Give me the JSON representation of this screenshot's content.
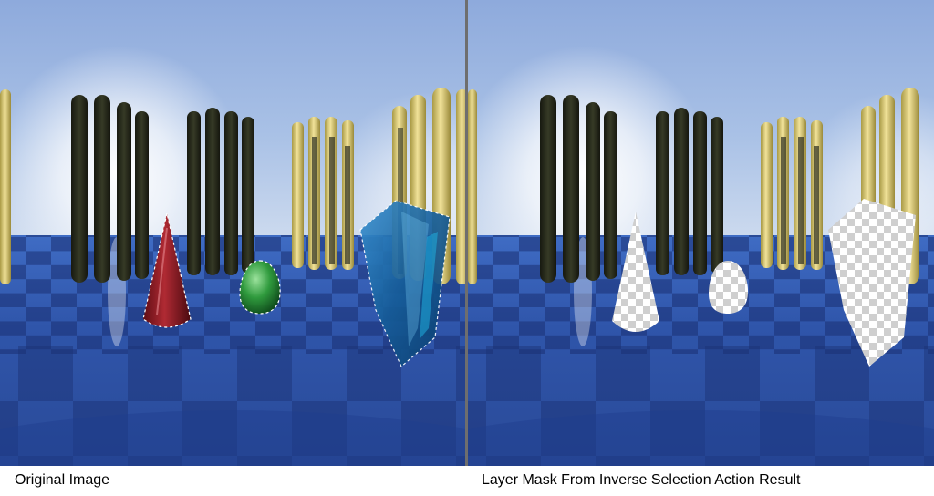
{
  "captions": {
    "left": "Original Image",
    "right": "Layer Mask From Inverse Selection Action Result"
  },
  "colors": {
    "sky_top": "#97b2d8",
    "sky_glow": "#ffffff",
    "floor": "#2b4b9e",
    "floor_dark": "#172b66",
    "pillar_dark": "#27291c",
    "pillar_gold": "#d8c56e",
    "cone_red": "#8b1a22",
    "egg_green": "#2f9a3d",
    "shield_blue": "#1d6fb0",
    "divider": "#6e6e6e",
    "caption_text": "#000000"
  },
  "icons": {
    "cone": "cone-object",
    "egg": "egg-object",
    "shield": "glass-shield-object",
    "mask": "transparency-checkerboard"
  }
}
